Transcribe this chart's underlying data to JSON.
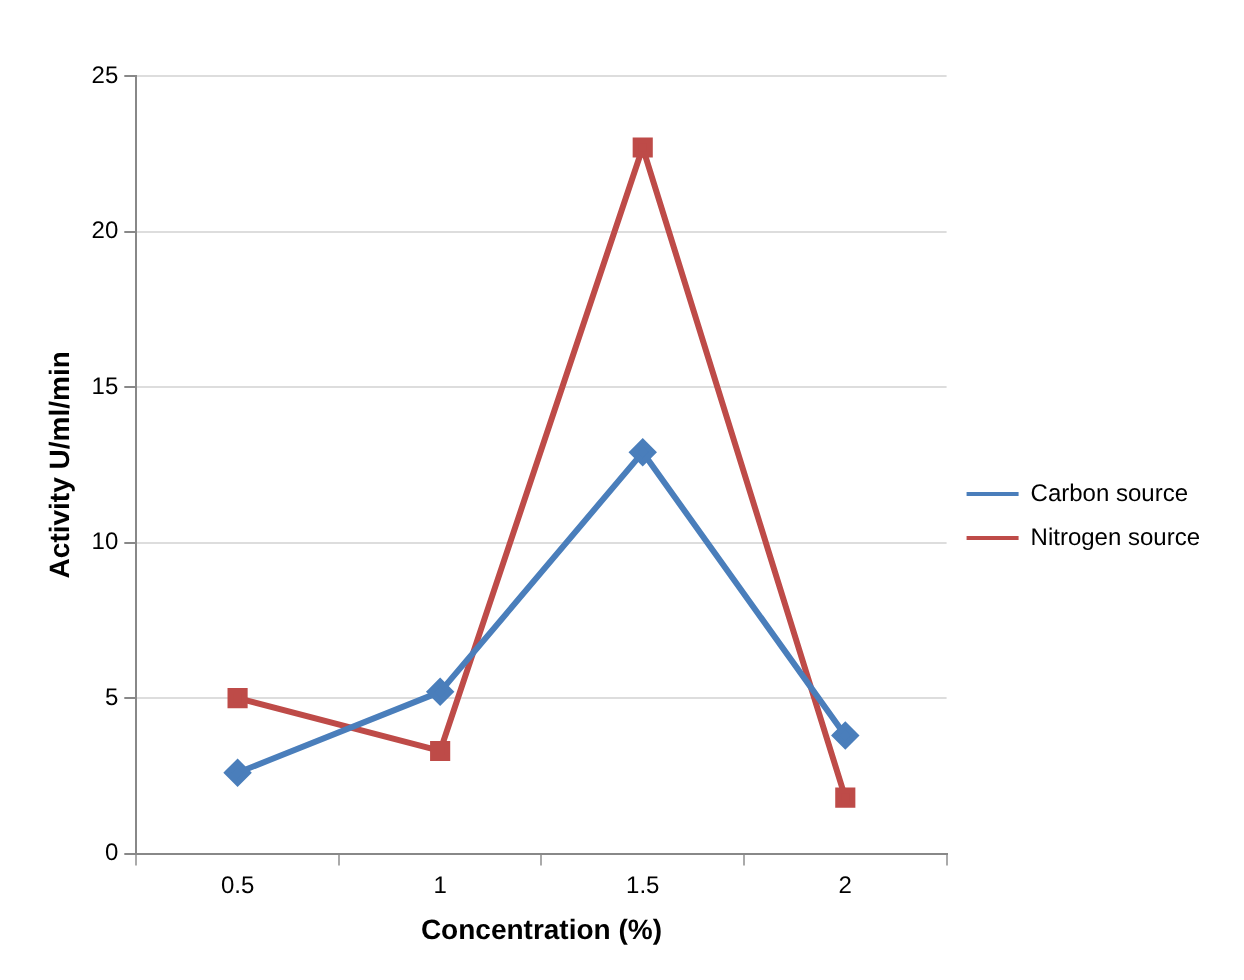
{
  "chart_data": {
    "type": "line",
    "xlabel": "Concentration (%)",
    "ylabel": "Activity U/ml/min",
    "categories": [
      "0.5",
      "1",
      "1.5",
      "2"
    ],
    "series": [
      {
        "name": "Carbon source",
        "color": "#4a7ebb",
        "marker": "diamond",
        "values": [
          2.6,
          5.2,
          12.9,
          3.8
        ]
      },
      {
        "name": "Nitrogen source",
        "color": "#be4b48",
        "marker": "square",
        "values": [
          5.0,
          3.3,
          22.7,
          1.8
        ]
      }
    ],
    "ylim": [
      0,
      25
    ],
    "yticks": [
      0,
      5,
      10,
      15,
      20,
      25
    ],
    "grid": "y",
    "legend": "right",
    "line_style": "solid"
  }
}
